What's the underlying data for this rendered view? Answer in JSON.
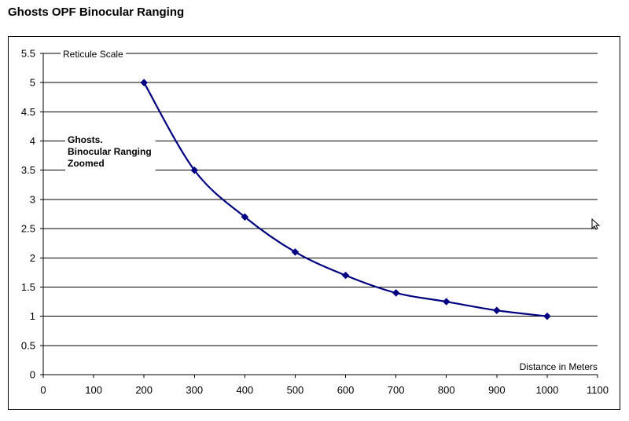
{
  "title": "Ghosts OPF Binocular Ranging",
  "chart_data": {
    "type": "line",
    "title": "Ghosts OPF Binocular Ranging",
    "xlabel": "Distance in Meters",
    "ylabel": "Reticule Scale",
    "xlim": [
      0,
      1100
    ],
    "ylim": [
      0,
      5.5
    ],
    "x_ticks": [
      "0",
      "100",
      "200",
      "300",
      "400",
      "500",
      "600",
      "700",
      "800",
      "900",
      "1000",
      "1100"
    ],
    "y_ticks": [
      "0",
      "0.5",
      "1",
      "1.5",
      "2",
      "2.5",
      "3",
      "3.5",
      "4",
      "4.5",
      "5",
      "5.5"
    ],
    "grid": "horizontal",
    "smooth": true,
    "series": [
      {
        "name": "Ghosts. Binocular Ranging Zoomed",
        "color": "#000080",
        "marker": "diamond",
        "x": [
          200,
          300,
          400,
          500,
          600,
          700,
          800,
          900,
          1000
        ],
        "y": [
          5,
          3.5,
          2.7,
          2.1,
          1.7,
          1.4,
          1.25,
          1.1,
          1.0
        ]
      }
    ],
    "legend": {
      "placement": "upper-left",
      "lines": [
        "Ghosts.",
        "Binocular Ranging",
        "Zoomed"
      ]
    }
  }
}
